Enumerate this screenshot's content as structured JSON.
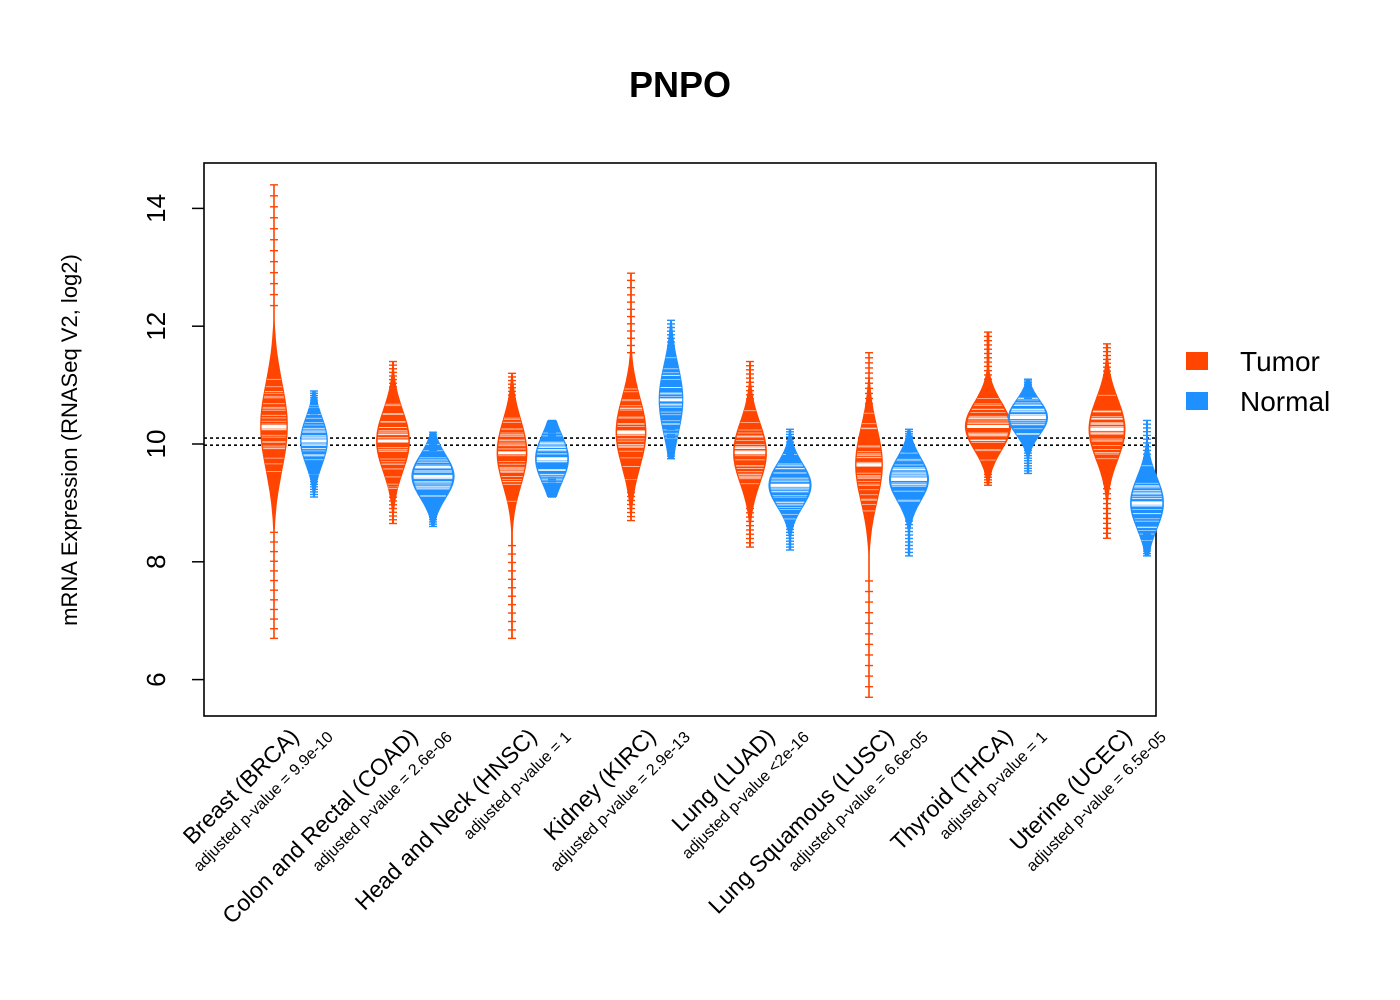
{
  "chart_data": {
    "type": "violin",
    "title": "PNPO",
    "xlabel": "",
    "ylabel": "mRNA Expression (RNASeq V2, log2)",
    "ylim": [
      5.4,
      14.8
    ],
    "yticks": [
      6,
      8,
      10,
      12,
      14
    ],
    "reference_lines": [
      9.98,
      10.1
    ],
    "legend": {
      "position": "right",
      "entries": [
        {
          "name": "Tumor",
          "color": "#FF4500"
        },
        {
          "name": "Normal",
          "color": "#1E90FF"
        }
      ]
    },
    "groups": [
      {
        "category": "Breast (BRCA)",
        "pvalue": "adjusted p-value = 9.9e-10",
        "tumor": {
          "median": 10.3,
          "q1": 9.8,
          "q3": 10.8,
          "min": 6.7,
          "max": 14.4,
          "width": 0.45
        },
        "normal": {
          "median": 10.05,
          "q1": 9.8,
          "q3": 10.35,
          "min": 9.1,
          "max": 10.9,
          "width": 0.45
        }
      },
      {
        "category": "Colon and Rectal (COAD)",
        "pvalue": "adjusted p-value = 2.6e-06",
        "tumor": {
          "median": 10.05,
          "q1": 9.7,
          "q3": 10.4,
          "min": 8.65,
          "max": 11.4,
          "width": 0.55
        },
        "normal": {
          "median": 9.45,
          "q1": 9.2,
          "q3": 9.7,
          "min": 8.6,
          "max": 10.2,
          "width": 0.7
        }
      },
      {
        "category": "Head and Neck (HNSC)",
        "pvalue": "adjusted p-value = 1",
        "tumor": {
          "median": 9.85,
          "q1": 9.45,
          "q3": 10.2,
          "min": 6.7,
          "max": 11.2,
          "width": 0.5
        },
        "normal": {
          "median": 9.75,
          "q1": 9.45,
          "q3": 10.0,
          "min": 9.1,
          "max": 10.4,
          "width": 0.55
        }
      },
      {
        "category": "Kidney (KIRC)",
        "pvalue": "adjusted p-value = 2.9e-13",
        "tumor": {
          "median": 10.2,
          "q1": 9.8,
          "q3": 10.6,
          "min": 8.7,
          "max": 12.9,
          "width": 0.5
        },
        "normal": {
          "median": 10.75,
          "q1": 10.5,
          "q3": 11.3,
          "min": 9.75,
          "max": 12.1,
          "width": 0.4
        }
      },
      {
        "category": "Lung (LUAD)",
        "pvalue": "adjusted p-value <2e-16",
        "tumor": {
          "median": 9.85,
          "q1": 9.5,
          "q3": 10.2,
          "min": 8.25,
          "max": 11.4,
          "width": 0.55
        },
        "normal": {
          "median": 9.3,
          "q1": 9.05,
          "q3": 9.55,
          "min": 8.2,
          "max": 10.25,
          "width": 0.7
        }
      },
      {
        "category": "Lung Squamous (LUSC)",
        "pvalue": "adjusted p-value = 6.6e-05",
        "tumor": {
          "median": 9.65,
          "q1": 9.2,
          "q3": 10.05,
          "min": 5.7,
          "max": 11.55,
          "width": 0.45
        },
        "normal": {
          "median": 9.4,
          "q1": 9.15,
          "q3": 9.65,
          "min": 8.1,
          "max": 10.25,
          "width": 0.65
        }
      },
      {
        "category": "Thyroid (THCA)",
        "pvalue": "adjusted p-value = 1",
        "tumor": {
          "median": 10.3,
          "q1": 10.0,
          "q3": 10.55,
          "min": 9.3,
          "max": 11.9,
          "width": 0.75
        },
        "normal": {
          "median": 10.45,
          "q1": 10.25,
          "q3": 10.65,
          "min": 9.5,
          "max": 11.1,
          "width": 0.65
        }
      },
      {
        "category": "Uterine (UCEC)",
        "pvalue": "adjusted p-value = 6.5e-05",
        "tumor": {
          "median": 10.25,
          "q1": 9.9,
          "q3": 10.6,
          "min": 8.4,
          "max": 11.7,
          "width": 0.6
        },
        "normal": {
          "median": 9.0,
          "q1": 8.7,
          "q3": 9.3,
          "min": 8.1,
          "max": 10.4,
          "width": 0.55
        }
      }
    ]
  }
}
